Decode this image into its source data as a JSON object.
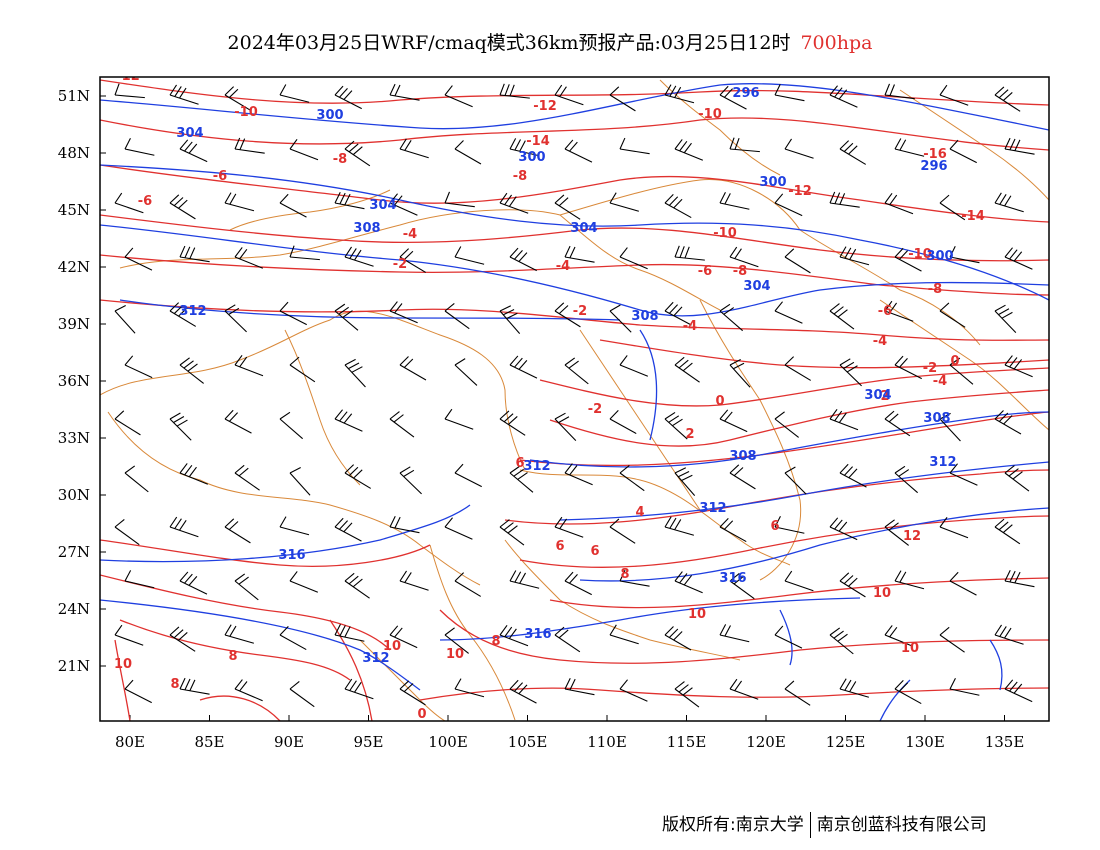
{
  "title": {
    "main": "2024年03月25日WRF/cmaq模式36km预报产品:03月25日12时",
    "level": "700hpa"
  },
  "colors": {
    "temperature": "#e0312f",
    "height": "#1f3fe0",
    "border": "#d9893a",
    "wind": "#000000"
  },
  "axes": {
    "lat_ticks": [
      "51N",
      "48N",
      "45N",
      "42N",
      "39N",
      "36N",
      "33N",
      "30N",
      "27N",
      "24N",
      "21N"
    ],
    "lat_values": [
      51,
      48,
      45,
      42,
      39,
      36,
      33,
      30,
      27,
      24,
      21
    ],
    "lon_ticks": [
      "80E",
      "85E",
      "90E",
      "95E",
      "100E",
      "105E",
      "110E",
      "115E",
      "120E",
      "125E",
      "130E",
      "135E"
    ],
    "lon_values": [
      80,
      85,
      90,
      95,
      100,
      105,
      110,
      115,
      120,
      125,
      130,
      135
    ],
    "lon_range": [
      78,
      138
    ],
    "lat_range": [
      18,
      52
    ]
  },
  "temperature_labels": [
    "-12",
    "-10",
    "-12",
    "-10",
    "-14",
    "-8",
    "-8",
    "-6",
    "-6",
    "-16",
    "-12",
    "-14",
    "-4",
    "-2",
    "-4",
    "-10",
    "-6",
    "-8",
    "-10",
    "-8",
    "-2",
    "-4",
    "-6",
    "-4",
    "0",
    "-2",
    "-4",
    "0",
    "-2",
    "2",
    "2",
    "6",
    "4",
    "6",
    "6",
    "6",
    "8",
    "10",
    "8",
    "10",
    "12",
    "10",
    "8",
    "10",
    "10",
    "8",
    "10",
    "0"
  ],
  "height_labels": [
    "296",
    "304",
    "300",
    "300",
    "300",
    "296",
    "304",
    "308",
    "304",
    "312",
    "308",
    "304",
    "300",
    "312",
    "304",
    "308",
    "308",
    "312",
    "312",
    "316",
    "316",
    "316",
    "312"
  ],
  "footer": {
    "left": "版权所有:南京大学",
    "right": "南京创蓝科技有限公司"
  }
}
